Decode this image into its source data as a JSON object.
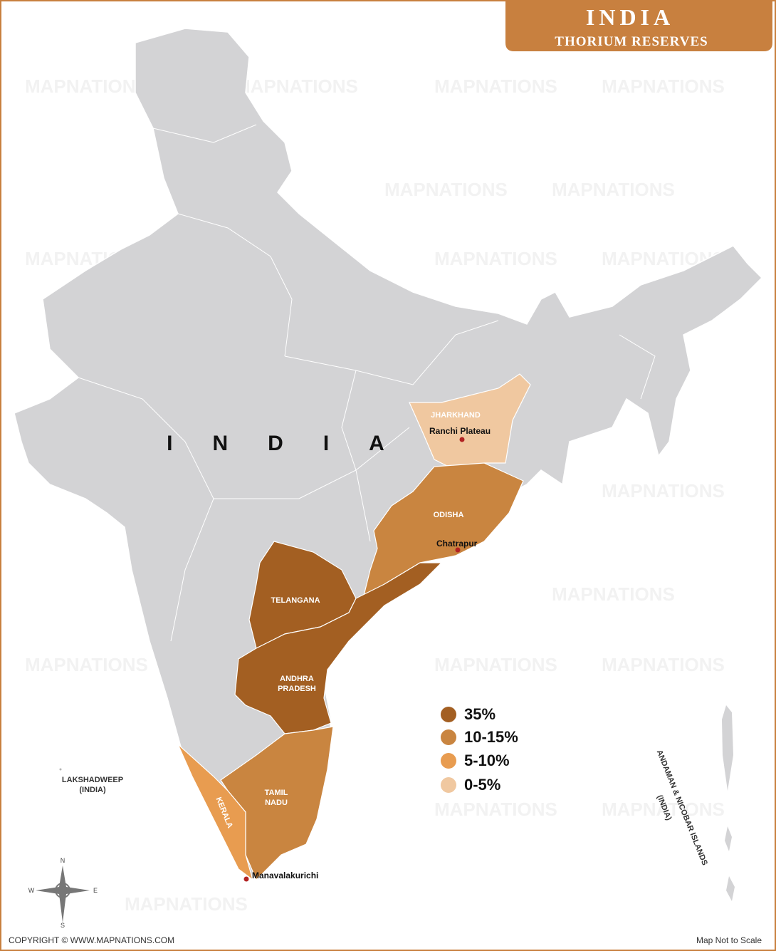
{
  "header": {
    "title": "INDIA",
    "subtitle": "THORIUM RESERVES"
  },
  "country_label": "INDIA",
  "watermark": "MAPNATIONS",
  "regions": [
    {
      "label": [
        "JHARKHAND"
      ],
      "color": "#f0c8a0"
    },
    {
      "label": [
        "ODISHA"
      ],
      "color": "#c98540"
    },
    {
      "label": [
        "TELANGANA"
      ],
      "color": "#a35f22"
    },
    {
      "label": [
        "ANDHRA",
        "PRADESH"
      ],
      "color": "#a35f22"
    },
    {
      "label": [
        "TAMIL",
        "NADU"
      ],
      "color": "#c98540"
    },
    {
      "label": [
        "KERALA"
      ],
      "color": "#e89c50"
    }
  ],
  "places": [
    "Ranchi Plateau",
    "Chatrapur",
    "Manavalakurichi"
  ],
  "islands": {
    "lakshadweep": [
      "LAKSHADWEEP",
      "(INDIA)"
    ],
    "andaman": [
      "ANDAMAN & NICOBAR ISLANDS",
      "(INDIA)"
    ]
  },
  "legend": [
    {
      "label": "35%",
      "color": "#a35f22"
    },
    {
      "label": "10-15%",
      "color": "#c98540"
    },
    {
      "label": "5-10%",
      "color": "#e89c50"
    },
    {
      "label": "0-5%",
      "color": "#f0c8a0"
    }
  ],
  "compass": {
    "n": "N",
    "e": "E",
    "s": "S",
    "w": "W"
  },
  "footer": {
    "copyright": "COPYRIGHT © WWW.MAPNATIONS.COM",
    "scale_note": "Map Not to Scale"
  }
}
